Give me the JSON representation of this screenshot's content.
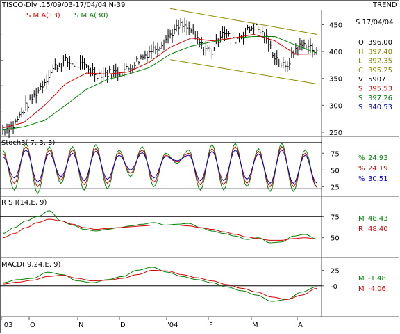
{
  "header": {
    "title": "TISCO-Dly .15/09/03-17/04/04 N-39",
    "trend_label": "TREND",
    "date_label": "S 17/04/04",
    "sma13_label": "S M A(13)",
    "sma30_label": "S M A(30)"
  },
  "price_panel": {
    "readouts": [
      {
        "prefix": "O",
        "value": "396.00",
        "color": "#000000"
      },
      {
        "prefix": "H",
        "value": "397.40",
        "color": "#8a8a00"
      },
      {
        "prefix": "L",
        "value": "392.35",
        "color": "#8a8a00"
      },
      {
        "prefix": "C",
        "value": "395.25",
        "color": "#8a8a00"
      },
      {
        "prefix": "V",
        "value": "5907",
        "color": "#000000"
      },
      {
        "prefix": "S",
        "value": "395.53",
        "color": "#d40000"
      },
      {
        "prefix": "S",
        "value": "397.26",
        "color": "#008000"
      },
      {
        "prefix": "S",
        "value": "340.53",
        "color": "#0000cc"
      }
    ],
    "y_ticks": [
      "450",
      "400",
      "350",
      "300",
      "250"
    ]
  },
  "stoch_panel": {
    "label": "Stoch3( 7, 3, 3)",
    "y_ticks": [
      "75",
      "50",
      "25"
    ],
    "readouts": [
      {
        "prefix": "%",
        "value": "24.93",
        "color": "#008000"
      },
      {
        "prefix": "%",
        "value": "24.19",
        "color": "#d40000"
      },
      {
        "prefix": "%",
        "value": "30.51",
        "color": "#0000cc"
      }
    ]
  },
  "rsi_panel": {
    "label": "R S I(14,E, 9)",
    "y_ticks": [
      "75",
      "50"
    ],
    "readouts": [
      {
        "prefix": "M",
        "value": "48.43",
        "color": "#008000"
      },
      {
        "prefix": "R",
        "value": "48.40",
        "color": "#d40000"
      }
    ]
  },
  "macd_panel": {
    "label": "MACD( 9,24,E, 9)",
    "y_ticks": [
      "25",
      "-0"
    ],
    "readouts": [
      {
        "prefix": "M",
        "value": "-1.48",
        "color": "#008000"
      },
      {
        "prefix": "M",
        "value": "-4.06",
        "color": "#d40000"
      }
    ]
  },
  "x_axis": {
    "labels": [
      "'03",
      "O",
      "N",
      "D",
      "'04",
      "F",
      "M",
      "A"
    ]
  },
  "colors": {
    "sma13": "#d40000",
    "sma30": "#008000",
    "channel": "#8a8a00",
    "stoch_k": "#008000",
    "stoch_d": "#d40000",
    "stoch_slow": "#0000cc",
    "rsi": "#008000",
    "rsi_signal": "#d40000",
    "macd": "#008000",
    "macd_signal": "#d40000"
  },
  "chart_data": [
    {
      "type": "line",
      "title": "TISCO-Dly .15/09/03-17/04/04 N-39",
      "x_ticks": [
        "'03",
        "O",
        "N",
        "D",
        "'04",
        "F",
        "M",
        "A"
      ],
      "ylim": [
        250,
        470
      ],
      "series": [
        {
          "name": "Close",
          "x": [
            0,
            5,
            10,
            15,
            20,
            25,
            30,
            35,
            40,
            45,
            50,
            55,
            60,
            65,
            70,
            75,
            80,
            85,
            90,
            95,
            100,
            105,
            110,
            115,
            120,
            125,
            130,
            135,
            140,
            145,
            150
          ],
          "values": [
            255,
            262,
            292,
            318,
            345,
            372,
            382,
            375,
            372,
            358,
            360,
            362,
            368,
            385,
            400,
            412,
            432,
            448,
            440,
            410,
            400,
            440,
            420,
            432,
            448,
            430,
            392,
            368,
            405,
            415,
            395
          ]
        },
        {
          "name": "S M A(13)",
          "x": [
            0,
            10,
            20,
            30,
            40,
            50,
            60,
            70,
            80,
            90,
            100,
            110,
            120,
            130,
            140,
            150
          ],
          "values": [
            258,
            268,
            300,
            340,
            360,
            358,
            362,
            380,
            408,
            425,
            420,
            425,
            432,
            420,
            395,
            395.53
          ]
        },
        {
          "name": "S M A(30)",
          "x": [
            0,
            10,
            20,
            30,
            40,
            50,
            60,
            70,
            80,
            90,
            100,
            110,
            120,
            130,
            140,
            150
          ],
          "values": [
            254,
            260,
            272,
            300,
            330,
            348,
            358,
            370,
            395,
            410,
            418,
            425,
            428,
            428,
            412,
            397.26
          ]
        }
      ],
      "channel": {
        "upper": [
          [
            80,
            480
          ],
          [
            150,
            432
          ]
        ],
        "lower": [
          [
            80,
            385
          ],
          [
            150,
            340
          ]
        ]
      }
    },
    {
      "type": "line",
      "title": "Stoch3( 7, 3, 3)",
      "ylim": [
        15,
        95
      ],
      "y_ticks": [
        75,
        50,
        25
      ],
      "series": [
        {
          "name": "%K",
          "values": [
            80,
            20,
            90,
            15,
            85,
            30,
            85,
            20,
            88,
            22,
            80,
            40,
            85,
            25,
            75,
            60,
            80,
            20,
            88,
            20,
            90,
            25,
            82,
            18,
            90,
            18,
            80,
            24.93
          ]
        },
        {
          "name": "%D",
          "values": [
            75,
            30,
            85,
            25,
            80,
            35,
            80,
            28,
            82,
            30,
            76,
            45,
            80,
            32,
            72,
            62,
            75,
            28,
            82,
            28,
            85,
            30,
            78,
            25,
            85,
            25,
            75,
            24.19
          ]
        },
        {
          "name": "Slow",
          "values": [
            70,
            38,
            80,
            32,
            75,
            40,
            75,
            34,
            78,
            36,
            72,
            50,
            76,
            38,
            70,
            64,
            72,
            34,
            78,
            34,
            80,
            36,
            74,
            30,
            80,
            30,
            72,
            30.51
          ]
        }
      ]
    },
    {
      "type": "line",
      "title": "R S I(14,E, 9)",
      "y_ticks": [
        75,
        50
      ],
      "series": [
        {
          "name": "RSI",
          "values": [
            55,
            62,
            70,
            75,
            82,
            70,
            65,
            60,
            58,
            60,
            62,
            64,
            66,
            68,
            65,
            66,
            67,
            62,
            58,
            55,
            52,
            48,
            50,
            44,
            45,
            52,
            54,
            48.43
          ]
        },
        {
          "name": "Signal",
          "values": [
            50,
            55,
            62,
            68,
            72,
            70,
            66,
            62,
            60,
            61,
            62,
            63,
            64,
            65,
            65,
            65,
            64,
            62,
            60,
            57,
            54,
            51,
            49,
            47,
            47,
            49,
            50,
            48.4
          ]
        }
      ]
    },
    {
      "type": "line",
      "title": "MACD( 9,24,E, 9)",
      "y_ticks": [
        25,
        0
      ],
      "series": [
        {
          "name": "MACD",
          "values": [
            5,
            10,
            12,
            22,
            18,
            8,
            5,
            10,
            15,
            25,
            30,
            22,
            15,
            10,
            5,
            -2,
            -8,
            -15,
            -25,
            -22,
            -10,
            -1.48
          ]
        },
        {
          "name": "Signal",
          "values": [
            3,
            6,
            9,
            15,
            17,
            12,
            8,
            9,
            12,
            18,
            25,
            24,
            18,
            13,
            8,
            2,
            -4,
            -10,
            -18,
            -22,
            -15,
            -4.06
          ]
        }
      ]
    }
  ]
}
